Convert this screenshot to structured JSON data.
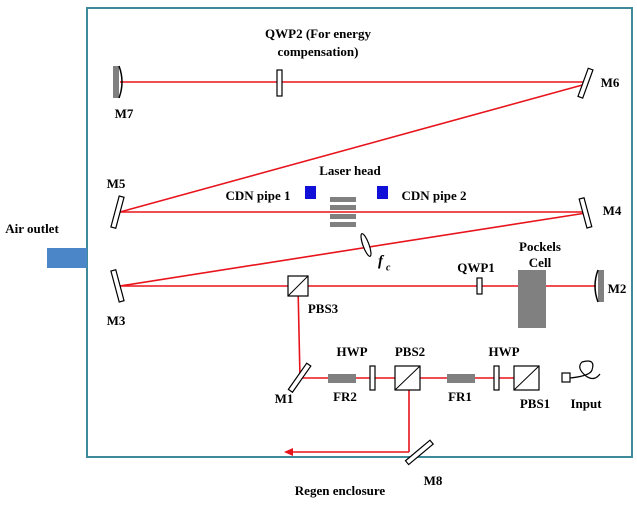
{
  "labels": {
    "air_outlet": "Air outlet",
    "enclosure": "Regen enclosure",
    "qwp2_line1": "QWP2 (For energy",
    "qwp2_line2": "compensation)",
    "m7": "M7",
    "m6": "M6",
    "m5": "M5",
    "m4": "M4",
    "m3": "M3",
    "m2": "M2",
    "m1": "M1",
    "m8": "M8",
    "laser_head": "Laser head",
    "cdn_pipe_1": "CDN pipe 1",
    "cdn_pipe_2": "CDN pipe 2",
    "fc": "f",
    "fc_sub": "c",
    "qwp1": "QWP1",
    "pockels_line1": "Pockels",
    "pockels_line2": "Cell",
    "pbs3": "PBS3",
    "pbs2": "PBS2",
    "pbs1": "PBS1",
    "hwp_left": "HWP",
    "hwp_right": "HWP",
    "fr2": "FR2",
    "fr1": "FR1",
    "input": "Input"
  }
}
